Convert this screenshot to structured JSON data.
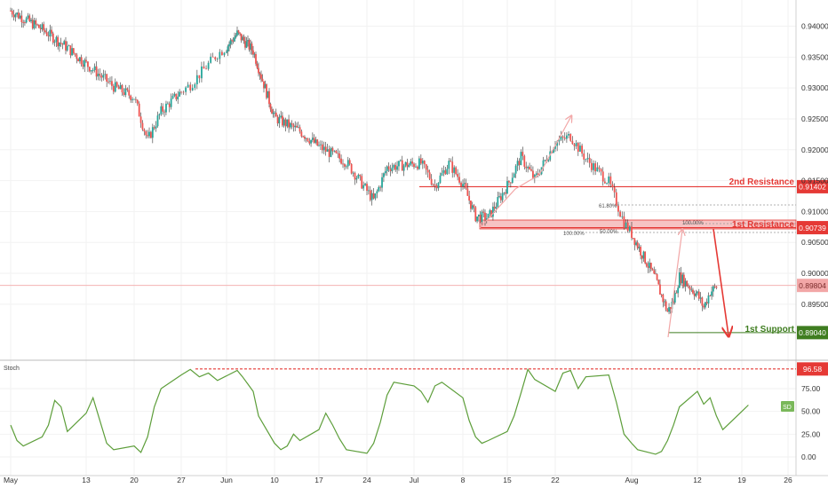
{
  "colors": {
    "up": "#26a69a",
    "down": "#ef5350",
    "resistance": "#e53935",
    "support": "#3f7d20",
    "stoch_line": "#5d9e3a",
    "current": "#f2a7a7",
    "grid": "#f2f2f2",
    "axis_text": "#333333"
  },
  "chart_data": [
    {
      "type": "candlestick",
      "x_ticks": [
        "May",
        "13",
        "20",
        "27",
        "Jun",
        "10",
        "17",
        "24",
        "Jul",
        "8",
        "15",
        "22",
        "Aug",
        "12",
        "19",
        "26"
      ],
      "y_ticks": [
        "0.94000",
        "0.93500",
        "0.93000",
        "0.92500",
        "0.92000",
        "0.91500",
        "0.91000",
        "0.90500",
        "0.90000",
        "0.89500"
      ],
      "ylim": [
        0.8885,
        0.9435
      ],
      "grid": true,
      "levels": [
        {
          "label": "2nd Resistance",
          "value": "0.91402",
          "num": 0.91402,
          "color": "#e53935"
        },
        {
          "label": "1st Resistance",
          "value": "0.90739",
          "num": 0.90739,
          "color": "#e53935"
        },
        {
          "label": "1st Support",
          "value": "0.89040",
          "num": 0.8904,
          "color": "#3f7d20"
        }
      ],
      "current_price": {
        "value": "0.89804",
        "num": 0.89804
      },
      "fib_labels": [
        "61.80%",
        "100.00%",
        "100.00%",
        "50.00%"
      ],
      "series": [
        {
          "date": "May 01",
          "value": 0.9425
        },
        {
          "date": "May 06",
          "value": 0.9395
        },
        {
          "date": "May 10",
          "value": 0.9365
        },
        {
          "date": "May 14",
          "value": 0.933
        },
        {
          "date": "May 17",
          "value": 0.9302
        },
        {
          "date": "May 20",
          "value": 0.9285
        },
        {
          "date": "May 22",
          "value": 0.9215
        },
        {
          "date": "May 24",
          "value": 0.9262
        },
        {
          "date": "May 28",
          "value": 0.9305
        },
        {
          "date": "May 31",
          "value": 0.9355
        },
        {
          "date": "Jun 03",
          "value": 0.9388
        },
        {
          "date": "Jun 06",
          "value": 0.936
        },
        {
          "date": "Jun 10",
          "value": 0.9252
        },
        {
          "date": "Jun 14",
          "value": 0.923
        },
        {
          "date": "Jun 17",
          "value": 0.9205
        },
        {
          "date": "Jun 21",
          "value": 0.918
        },
        {
          "date": "Jun 25",
          "value": 0.9118
        },
        {
          "date": "Jun 27",
          "value": 0.9172
        },
        {
          "date": "Jul 02",
          "value": 0.9178
        },
        {
          "date": "Jul 04",
          "value": 0.9142
        },
        {
          "date": "Jul 06",
          "value": 0.9178
        },
        {
          "date": "Jul 08",
          "value": 0.9145
        },
        {
          "date": "Jul 10",
          "value": 0.9092
        },
        {
          "date": "Jul 12",
          "value": 0.909
        },
        {
          "date": "Jul 15",
          "value": 0.9142
        },
        {
          "date": "Jul 17",
          "value": 0.9188
        },
        {
          "date": "Jul 19",
          "value": 0.9152
        },
        {
          "date": "Jul 22",
          "value": 0.9212
        },
        {
          "date": "Jul 24",
          "value": 0.9222
        },
        {
          "date": "Jul 26",
          "value": 0.9185
        },
        {
          "date": "Jul 29",
          "value": 0.9148
        },
        {
          "date": "Jul 31",
          "value": 0.9082
        },
        {
          "date": "Aug 02",
          "value": 0.9045
        },
        {
          "date": "Aug 05",
          "value": 0.899
        },
        {
          "date": "Aug 07",
          "value": 0.8938
        },
        {
          "date": "Aug 08",
          "value": 0.8955
        },
        {
          "date": "Aug 09",
          "value": 0.8995
        },
        {
          "date": "Aug 12",
          "value": 0.8965
        },
        {
          "date": "Aug 13",
          "value": 0.8945
        },
        {
          "date": "Aug 14",
          "value": 0.897
        },
        {
          "date": "Aug 15",
          "value": 0.8978
        }
      ]
    },
    {
      "type": "line",
      "title": "Stoch",
      "y_ticks": [
        "75.00",
        "50.00",
        "25.00",
        "0.00"
      ],
      "ylim": [
        -10,
        105
      ],
      "overbought": {
        "value": "96.58",
        "num": 96.58
      },
      "badge": "SD",
      "series": [
        {
          "date": "May 01",
          "value": 35
        },
        {
          "date": "May 02",
          "value": 18
        },
        {
          "date": "May 03",
          "value": 12
        },
        {
          "date": "May 06",
          "value": 22
        },
        {
          "date": "May 07",
          "value": 35
        },
        {
          "date": "May 08",
          "value": 62
        },
        {
          "date": "May 09",
          "value": 55
        },
        {
          "date": "May 10",
          "value": 28
        },
        {
          "date": "May 13",
          "value": 48
        },
        {
          "date": "May 14",
          "value": 65
        },
        {
          "date": "May 15",
          "value": 40
        },
        {
          "date": "May 16",
          "value": 15
        },
        {
          "date": "May 17",
          "value": 8
        },
        {
          "date": "May 20",
          "value": 12
        },
        {
          "date": "May 21",
          "value": 5
        },
        {
          "date": "May 22",
          "value": 22
        },
        {
          "date": "May 23",
          "value": 55
        },
        {
          "date": "May 24",
          "value": 75
        },
        {
          "date": "May 27",
          "value": 90
        },
        {
          "date": "May 28",
          "value": 96
        },
        {
          "date": "May 29",
          "value": 88
        },
        {
          "date": "May 30",
          "value": 92
        },
        {
          "date": "May 31",
          "value": 84
        },
        {
          "date": "Jun 03",
          "value": 95
        },
        {
          "date": "Jun 04",
          "value": 88
        },
        {
          "date": "Jun 05",
          "value": 80
        },
        {
          "date": "Jun 06",
          "value": 72
        },
        {
          "date": "Jun 07",
          "value": 45
        },
        {
          "date": "Jun 10",
          "value": 15
        },
        {
          "date": "Jun 11",
          "value": 8
        },
        {
          "date": "Jun 12",
          "value": 12
        },
        {
          "date": "Jun 13",
          "value": 25
        },
        {
          "date": "Jun 14",
          "value": 18
        },
        {
          "date": "Jun 17",
          "value": 30
        },
        {
          "date": "Jun 18",
          "value": 48
        },
        {
          "date": "Jun 19",
          "value": 35
        },
        {
          "date": "Jun 20",
          "value": 20
        },
        {
          "date": "Jun 21",
          "value": 8
        },
        {
          "date": "Jun 24",
          "value": 4
        },
        {
          "date": "Jun 25",
          "value": 15
        },
        {
          "date": "Jun 26",
          "value": 38
        },
        {
          "date": "Jun 27",
          "value": 68
        },
        {
          "date": "Jun 28",
          "value": 82
        },
        {
          "date": "Jul 01",
          "value": 78
        },
        {
          "date": "Jul 02",
          "value": 72
        },
        {
          "date": "Jul 03",
          "value": 60
        },
        {
          "date": "Jul 04",
          "value": 78
        },
        {
          "date": "Jul 05",
          "value": 82
        },
        {
          "date": "Jul 08",
          "value": 65
        },
        {
          "date": "Jul 09",
          "value": 40
        },
        {
          "date": "Jul 10",
          "value": 22
        },
        {
          "date": "Jul 11",
          "value": 15
        },
        {
          "date": "Jul 12",
          "value": 18
        },
        {
          "date": "Jul 15",
          "value": 28
        },
        {
          "date": "Jul 16",
          "value": 45
        },
        {
          "date": "Jul 17",
          "value": 70
        },
        {
          "date": "Jul 18",
          "value": 96
        },
        {
          "date": "Jul 19",
          "value": 85
        },
        {
          "date": "Jul 22",
          "value": 72
        },
        {
          "date": "Jul 23",
          "value": 92
        },
        {
          "date": "Jul 24",
          "value": 95
        },
        {
          "date": "Jul 25",
          "value": 75
        },
        {
          "date": "Jul 26",
          "value": 88
        },
        {
          "date": "Jul 29",
          "value": 90
        },
        {
          "date": "Jul 30",
          "value": 60
        },
        {
          "date": "Jul 31",
          "value": 25
        },
        {
          "date": "Aug 01",
          "value": 15
        },
        {
          "date": "Aug 02",
          "value": 8
        },
        {
          "date": "Aug 05",
          "value": 3
        },
        {
          "date": "Aug 06",
          "value": 6
        },
        {
          "date": "Aug 07",
          "value": 18
        },
        {
          "date": "Aug 08",
          "value": 35
        },
        {
          "date": "Aug 09",
          "value": 55
        },
        {
          "date": "Aug 12",
          "value": 72
        },
        {
          "date": "Aug 13",
          "value": 58
        },
        {
          "date": "Aug 14",
          "value": 65
        },
        {
          "date": "Aug 15",
          "value": 45
        },
        {
          "date": "Aug 16",
          "value": 30
        },
        {
          "date": "Aug 19",
          "value": 50
        },
        {
          "date": "Aug 20",
          "value": 57
        }
      ]
    }
  ]
}
